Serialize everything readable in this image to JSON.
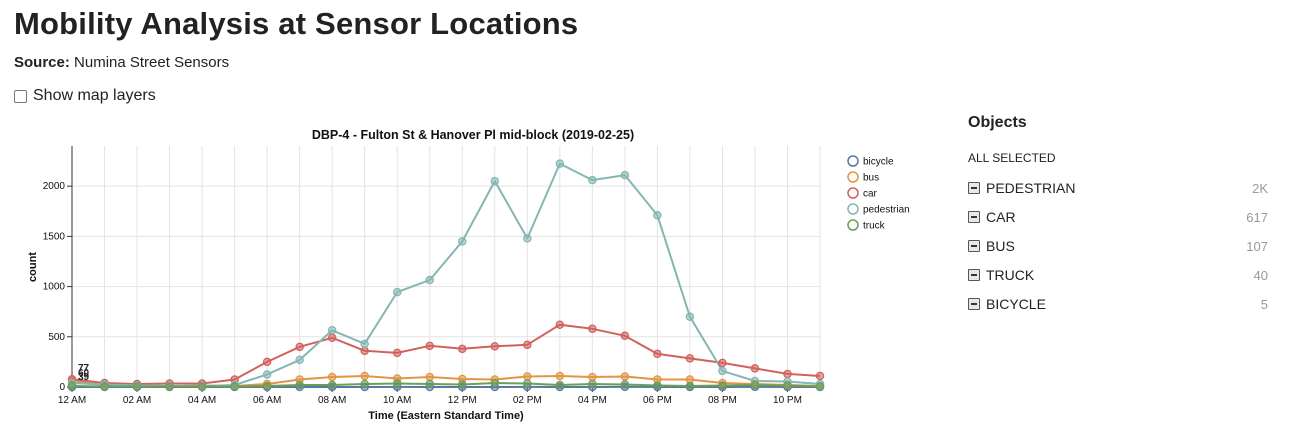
{
  "header": {
    "title": "Mobility Analysis at Sensor Locations",
    "source_label": "Source:",
    "source_value": "Numina Street Sensors",
    "map_layers_label": "Show map layers"
  },
  "objects_panel": {
    "title": "Objects",
    "subtitle": "ALL SELECTED",
    "items": [
      {
        "label": "PEDESTRIAN",
        "count": "2K"
      },
      {
        "label": "CAR",
        "count": "617"
      },
      {
        "label": "BUS",
        "count": "107"
      },
      {
        "label": "TRUCK",
        "count": "40"
      },
      {
        "label": "BICYCLE",
        "count": "5"
      }
    ]
  },
  "chart_data": {
    "type": "line",
    "title": "DBP-4 - Fulton St & Hanover Pl mid-block (2019-02-25)",
    "xlabel": "Time (Eastern Standard Time)",
    "ylabel": "count",
    "ylim": [
      0,
      2400
    ],
    "yticks": [
      0,
      500,
      1000,
      1500,
      2000
    ],
    "x": [
      0,
      1,
      2,
      3,
      4,
      5,
      6,
      7,
      8,
      9,
      10,
      11,
      12,
      13,
      14,
      15,
      16,
      17,
      18,
      19,
      20,
      21,
      22,
      23
    ],
    "xlim": [
      0,
      23
    ],
    "xticks": [
      {
        "hour": 0,
        "label": "12 AM"
      },
      {
        "hour": 2,
        "label": "02 AM"
      },
      {
        "hour": 4,
        "label": "04 AM"
      },
      {
        "hour": 6,
        "label": "06 AM"
      },
      {
        "hour": 8,
        "label": "08 AM"
      },
      {
        "hour": 10,
        "label": "10 AM"
      },
      {
        "hour": 12,
        "label": "12 PM"
      },
      {
        "hour": 14,
        "label": "02 PM"
      },
      {
        "hour": 16,
        "label": "04 PM"
      },
      {
        "hour": 18,
        "label": "06 PM"
      },
      {
        "hour": 20,
        "label": "08 PM"
      },
      {
        "hour": 22,
        "label": "10 PM"
      }
    ],
    "grid": true,
    "legend_position": "right",
    "start_labels": [
      "77",
      "60",
      "39"
    ],
    "series": [
      {
        "name": "bicycle",
        "color": "#5778a4",
        "values": [
          0,
          0,
          0,
          0,
          0,
          0,
          0,
          0,
          0,
          0,
          1,
          0,
          0,
          0,
          1,
          0,
          0,
          1,
          0,
          0,
          0,
          1,
          0,
          0
        ]
      },
      {
        "name": "bus",
        "color": "#e49444",
        "values": [
          60,
          20,
          15,
          10,
          15,
          10,
          30,
          75,
          100,
          110,
          85,
          100,
          80,
          75,
          105,
          110,
          100,
          105,
          75,
          75,
          40,
          30,
          20,
          10
        ]
      },
      {
        "name": "car",
        "color": "#d1615d",
        "values": [
          77,
          40,
          30,
          35,
          35,
          75,
          250,
          400,
          490,
          360,
          340,
          410,
          380,
          405,
          420,
          620,
          580,
          510,
          330,
          285,
          240,
          185,
          130,
          110
        ]
      },
      {
        "name": "pedestrian",
        "color": "#85b6b2",
        "values": [
          39,
          25,
          15,
          10,
          10,
          20,
          125,
          270,
          565,
          430,
          945,
          1065,
          1450,
          2050,
          1480,
          2225,
          2060,
          2110,
          1710,
          700,
          160,
          60,
          55,
          30
        ]
      },
      {
        "name": "truck",
        "color": "#6a9f58",
        "values": [
          10,
          5,
          5,
          5,
          5,
          5,
          10,
          20,
          20,
          30,
          35,
          30,
          25,
          40,
          35,
          20,
          30,
          25,
          15,
          10,
          15,
          20,
          15,
          5
        ]
      }
    ]
  }
}
